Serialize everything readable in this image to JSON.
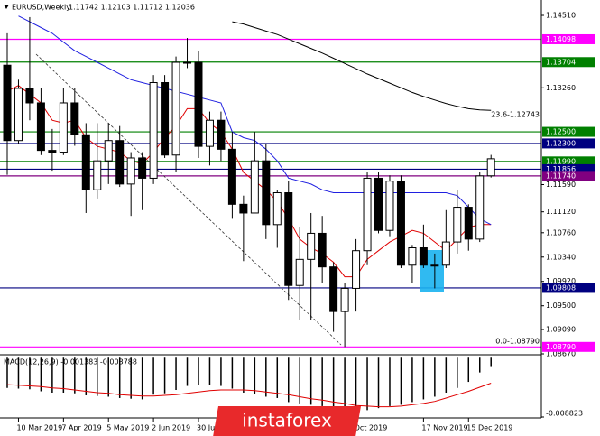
{
  "chart_data": {
    "type": "candlestick",
    "title": "EURUSD,Weekly",
    "quote": "1.11742 1.12103 1.11712 1.12036",
    "watermark": "instaforex",
    "annotations": [
      "23.6-1.12743",
      "0.0-1.08790"
    ],
    "ylim": [
      1.0867,
      1.14775
    ],
    "yticks": [
      {
        "value": 1.1451,
        "label": "1.14510"
      },
      {
        "value": 1.1326,
        "label": "1.13260"
      },
      {
        "value": 1.1159,
        "label": "1.11590"
      },
      {
        "value": 1.1112,
        "label": "1.11120"
      },
      {
        "value": 1.1076,
        "label": "1.10760"
      },
      {
        "value": 1.1034,
        "label": "1.10340"
      },
      {
        "value": 1.0992,
        "label": "1.09920"
      },
      {
        "value": 1.095,
        "label": "1.09500"
      },
      {
        "value": 1.0909,
        "label": "1.09090"
      },
      {
        "value": 1.0867,
        "label": "1.08670"
      }
    ],
    "xticks": [
      {
        "value": 1,
        "label": "10 Mar 2019"
      },
      {
        "value": 5,
        "label": "7 Apr 2019"
      },
      {
        "value": 9,
        "label": "5 May 2019"
      },
      {
        "value": 13,
        "label": "2 Jun 2019"
      },
      {
        "value": 17,
        "label": "30 Jun 2019"
      },
      {
        "value": 31,
        "label": "Oct 2019"
      },
      {
        "value": 37,
        "label": "17 Nov 2019"
      },
      {
        "value": 41,
        "label": "15 Dec 2019"
      }
    ],
    "open": [
      1.1365,
      1.1235,
      1.1325,
      1.13,
      1.1218,
      1.1215,
      1.13,
      1.1245,
      1.115,
      1.12,
      1.1235,
      1.116,
      1.1205,
      1.117,
      1.1335,
      1.121,
      1.137,
      1.137,
      1.1225,
      1.127,
      1.122,
      1.1125,
      1.111,
      1.12,
      1.109,
      1.1145,
      1.0985,
      1.103,
      1.1075,
      1.1017,
      1.094,
      1.098,
      1.1045,
      1.117,
      1.108,
      1.1165,
      1.102,
      1.105,
      1.102,
      1.102,
      1.106,
      1.112,
      1.1065,
      1.11742
    ],
    "high": [
      1.142,
      1.134,
      1.1448,
      1.1325,
      1.1255,
      1.1325,
      1.1325,
      1.1265,
      1.1265,
      1.1265,
      1.126,
      1.1215,
      1.1215,
      1.1348,
      1.1348,
      1.138,
      1.1412,
      1.139,
      1.1285,
      1.1285,
      1.125,
      1.114,
      1.125,
      1.123,
      1.115,
      1.1165,
      1.1085,
      1.111,
      1.1105,
      1.1025,
      1.099,
      1.1065,
      1.118,
      1.118,
      1.1175,
      1.1175,
      1.1055,
      1.109,
      1.104,
      1.1115,
      1.115,
      1.1125,
      1.118,
      1.12103
    ],
    "low": [
      1.1176,
      1.123,
      1.127,
      1.121,
      1.1183,
      1.121,
      1.1226,
      1.111,
      1.1135,
      1.116,
      1.1155,
      1.1105,
      1.1115,
      1.116,
      1.1205,
      1.118,
      1.136,
      1.1205,
      1.1192,
      1.12,
      1.11,
      1.1027,
      1.111,
      1.1065,
      1.105,
      1.096,
      1.0925,
      1.0925,
      1.099,
      1.0905,
      1.0879,
      1.094,
      1.102,
      1.1075,
      1.107,
      1.1015,
      1.099,
      1.1015,
      1.098,
      1.1015,
      1.104,
      1.1045,
      1.106,
      1.11712
    ],
    "close": [
      1.1235,
      1.1325,
      1.13,
      1.1218,
      1.1215,
      1.13,
      1.1245,
      1.115,
      1.12,
      1.1235,
      1.116,
      1.1205,
      1.117,
      1.1335,
      1.121,
      1.137,
      1.137,
      1.1225,
      1.127,
      1.122,
      1.1125,
      1.111,
      1.12,
      1.109,
      1.1145,
      1.0985,
      1.103,
      1.1075,
      1.1017,
      1.094,
      1.098,
      1.1045,
      1.117,
      1.108,
      1.1165,
      1.102,
      1.105,
      1.102,
      1.102,
      1.106,
      1.112,
      1.1065,
      1.1174,
      1.12036
    ],
    "lines": [
      {
        "color": "#e00000",
        "values": [
          1.132,
          1.133,
          1.1315,
          1.13,
          1.127,
          1.1265,
          1.127,
          1.124,
          1.1225,
          1.122,
          1.1215,
          1.12,
          1.1195,
          1.1215,
          1.124,
          1.126,
          1.129,
          1.129,
          1.1265,
          1.125,
          1.122,
          1.118,
          1.1165,
          1.115,
          1.113,
          1.11,
          1.1065,
          1.105,
          1.104,
          1.1025,
          1.1,
          1.1,
          1.103,
          1.1045,
          1.106,
          1.107,
          1.108,
          1.1075,
          1.106,
          1.1045,
          1.1065,
          1.1085,
          1.109,
          1.109
        ]
      },
      {
        "color": "#2020e0",
        "values": [
          null,
          1.145,
          1.144,
          1.143,
          1.142,
          1.1405,
          1.139,
          1.138,
          1.137,
          1.136,
          1.135,
          1.134,
          1.1335,
          1.133,
          1.1325,
          1.132,
          1.1315,
          1.131,
          1.1305,
          1.13,
          1.125,
          1.124,
          1.1235,
          1.122,
          1.12,
          1.117,
          1.1165,
          1.116,
          1.115,
          1.1145,
          1.1145,
          1.1145,
          1.1145,
          1.1145,
          1.1145,
          1.1145,
          1.1145,
          1.1145,
          1.1145,
          1.1145,
          1.114,
          1.112,
          1.11,
          1.109
        ]
      },
      {
        "color": "#000000",
        "values": [
          null,
          null,
          null,
          null,
          null,
          null,
          null,
          null,
          null,
          null,
          null,
          null,
          null,
          null,
          null,
          null,
          null,
          null,
          null,
          null,
          1.144,
          1.1436,
          1.143,
          1.1424,
          1.1418,
          1.141,
          1.1402,
          1.1394,
          1.1386,
          1.1377,
          1.1368,
          1.1359,
          1.135,
          1.1342,
          1.1334,
          1.1326,
          1.1318,
          1.1311,
          1.1305,
          1.1299,
          1.1294,
          1.129,
          1.1288,
          1.1287
        ]
      }
    ],
    "levels": [
      {
        "value": 1.14098,
        "color": "#ff00ff"
      },
      {
        "value": 1.13704,
        "color": "#008000"
      },
      {
        "value": 1.125,
        "label": "1.12500",
        "color": "#008000"
      },
      {
        "value": 1.123,
        "label": "1.12300",
        "color": "#000080"
      },
      {
        "value": 1.1199,
        "label": "1.11990",
        "color": "#008000"
      },
      {
        "value": 1.11856,
        "color": "#000080"
      },
      {
        "value": 1.1174,
        "label": "1.11740",
        "color": "#800080"
      },
      {
        "value": 1.09808,
        "color": "#000080"
      },
      {
        "value": 1.0879,
        "label": "1.08790",
        "color": "#ff00ff"
      }
    ],
    "macd": {
      "label": "MACD(12,26,9) -0.001383 -0.003788",
      "ylim": [
        -0.008823,
        0.0003
      ],
      "yticks": [
        -0.008823
      ],
      "signal_color": "#e00000",
      "histogram": [
        -0.0045,
        -0.0046,
        -0.0047,
        -0.005,
        -0.0052,
        -0.0052,
        -0.0053,
        -0.0056,
        -0.0057,
        -0.0058,
        -0.006,
        -0.0061,
        -0.0062,
        -0.0055,
        -0.0053,
        -0.0048,
        -0.0042,
        -0.004,
        -0.004,
        -0.0042,
        -0.0046,
        -0.0052,
        -0.0054,
        -0.0058,
        -0.006,
        -0.0066,
        -0.0068,
        -0.007,
        -0.0072,
        -0.0076,
        -0.008,
        -0.0081,
        -0.0078,
        -0.0075,
        -0.0072,
        -0.007,
        -0.0066,
        -0.0062,
        -0.0058,
        -0.0052,
        -0.0045,
        -0.0036,
        -0.0022,
        -0.001383
      ],
      "signal": [
        -0.004,
        -0.0041,
        -0.0042,
        -0.0043,
        -0.0045,
        -0.0046,
        -0.0048,
        -0.005,
        -0.0052,
        -0.0053,
        -0.0055,
        -0.0056,
        -0.0057,
        -0.0057,
        -0.0056,
        -0.0055,
        -0.0053,
        -0.0051,
        -0.0049,
        -0.0048,
        -0.0048,
        -0.0048,
        -0.0049,
        -0.0051,
        -0.0053,
        -0.0055,
        -0.0058,
        -0.0061,
        -0.0063,
        -0.0066,
        -0.0068,
        -0.0071,
        -0.0072,
        -0.0073,
        -0.0073,
        -0.0072,
        -0.007,
        -0.0068,
        -0.0065,
        -0.006,
        -0.0055,
        -0.005,
        -0.0044,
        -0.003788
      ]
    }
  }
}
